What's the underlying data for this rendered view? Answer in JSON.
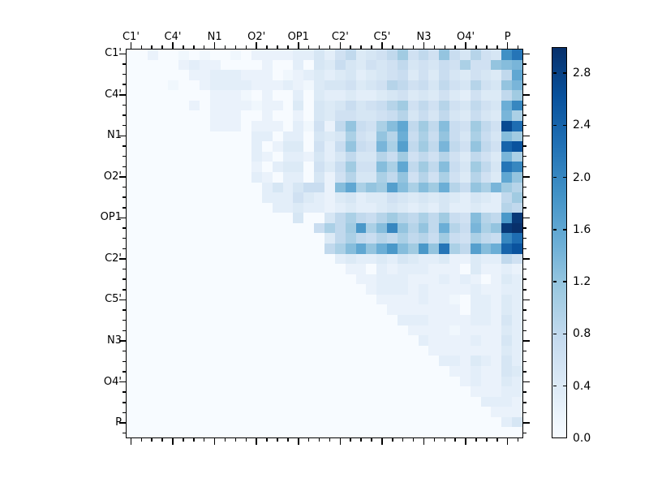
{
  "figure": {
    "background": "#ffffff",
    "kind": "matplotlib-heatmap-window"
  },
  "chart_data": {
    "type": "heatmap",
    "title": "",
    "xlabel": "",
    "ylabel": "",
    "axis_labels": [
      "C1'",
      "C4'",
      "N1",
      "O2'",
      "OP1",
      "C2'",
      "C5'",
      "N3",
      "O4'",
      "P"
    ],
    "label_cell_positions": [
      0,
      4,
      8,
      12,
      16,
      20,
      24,
      28,
      32,
      36
    ],
    "grid_size": 38,
    "orientation": "upper-triangular",
    "vmin": 0.0,
    "vmax": 3.0,
    "colormap_name": "Blues",
    "colormap": {
      "pos": [
        0.0,
        0.125,
        0.25,
        0.375,
        0.5,
        0.625,
        0.75,
        0.875,
        1.0
      ],
      "hex": [
        "#f7fbff",
        "#deebf7",
        "#c6dbef",
        "#9ecae1",
        "#6baed6",
        "#4292c6",
        "#2171b5",
        "#08519c",
        "#08306b"
      ]
    },
    "colorbar_tick_labels": [
      "0.0",
      "0.4",
      "0.8",
      "1.2",
      "1.6",
      "2.0",
      "2.4",
      "2.8"
    ],
    "colorbar_tick_values": [
      0.0,
      0.4,
      0.8,
      1.2,
      1.6,
      2.0,
      2.4,
      2.8
    ],
    "legend": "none",
    "grid_lines": "off",
    "matrix": [
      [
        0,
        0,
        0.2,
        0,
        0,
        0.1,
        0,
        0.1,
        0,
        0,
        0.1,
        0,
        0.2,
        0.2,
        0.2,
        0.2,
        0.3,
        0.3,
        0.5,
        0.3,
        0.6,
        0.8,
        0.4,
        0.5,
        0.6,
        0.8,
        1.1,
        0.6,
        0.8,
        0.6,
        1.2,
        0.7,
        0.5,
        0.9,
        0.6,
        0.5,
        1.9,
        2.2
      ],
      [
        0,
        0,
        0,
        0,
        0,
        0.2,
        0.3,
        0.2,
        0.2,
        0,
        0,
        0,
        0,
        0.2,
        0,
        0,
        0.3,
        0,
        0.5,
        0.4,
        0.7,
        0.5,
        0.4,
        0.6,
        0.5,
        0.6,
        0.8,
        0.5,
        0.6,
        0.5,
        0.7,
        0.6,
        1.0,
        0.6,
        0.6,
        1.2,
        1.3,
        1.4
      ],
      [
        0,
        0,
        0,
        0,
        0,
        0,
        0.2,
        0.2,
        0.3,
        0.3,
        0.3,
        0.2,
        0.2,
        0.2,
        0,
        0.1,
        0.2,
        0.3,
        0.4,
        0.3,
        0.4,
        0.5,
        0.3,
        0.4,
        0.5,
        0.6,
        0.7,
        0.4,
        0.6,
        0.4,
        0.7,
        0.5,
        0.4,
        0.6,
        0.5,
        0.4,
        0.8,
        1.6
      ],
      [
        0,
        0,
        0,
        0,
        0.1,
        0,
        0,
        0.2,
        0.3,
        0.3,
        0.3,
        0.3,
        0.2,
        0.2,
        0.2,
        0.3,
        0.2,
        0.1,
        0.4,
        0.5,
        0.5,
        0.6,
        0.4,
        0.5,
        0.6,
        0.9,
        0.8,
        0.6,
        0.7,
        0.5,
        0.8,
        0.6,
        0.5,
        0.9,
        0.6,
        0.5,
        1.2,
        1.4
      ],
      [
        0,
        0,
        0,
        0,
        0,
        0,
        0,
        0,
        0.2,
        0.2,
        0.2,
        0.1,
        0,
        0.2,
        0,
        0,
        0.3,
        0,
        0.4,
        0.3,
        0.3,
        0.4,
        0.3,
        0.3,
        0.4,
        0.5,
        0.6,
        0.4,
        0.5,
        0.4,
        0.6,
        0.4,
        0.3,
        0.6,
        0.4,
        0.4,
        0.8,
        1.1
      ],
      [
        0,
        0,
        0,
        0,
        0,
        0,
        0.2,
        0,
        0.2,
        0.2,
        0.2,
        0.2,
        0.1,
        0.2,
        0.2,
        0,
        0.4,
        0,
        0.5,
        0.4,
        0.5,
        0.7,
        0.5,
        0.6,
        0.7,
        0.9,
        1.1,
        0.6,
        0.8,
        0.6,
        0.9,
        0.6,
        0.5,
        0.8,
        0.6,
        0.5,
        1.5,
        2.0
      ],
      [
        0,
        0,
        0,
        0,
        0,
        0,
        0,
        0,
        0.2,
        0.2,
        0.2,
        0,
        0,
        0.2,
        0,
        0,
        0.2,
        0,
        0.5,
        0.4,
        0.6,
        0.6,
        0.5,
        0.5,
        0.6,
        0.7,
        0.9,
        0.5,
        0.7,
        0.5,
        0.8,
        0.5,
        0.4,
        0.7,
        0.5,
        0.4,
        1.4,
        1.0
      ],
      [
        0,
        0,
        0,
        0,
        0,
        0,
        0,
        0,
        0.2,
        0.2,
        0.2,
        0,
        0.2,
        0.2,
        0.2,
        0,
        0.3,
        0.1,
        0.6,
        0.2,
        0.8,
        1.2,
        0.7,
        0.6,
        1.0,
        1.3,
        1.6,
        0.8,
        1.1,
        0.8,
        1.3,
        0.7,
        0.6,
        1.1,
        0.8,
        0.6,
        2.7,
        2.3
      ],
      [
        0,
        0,
        0,
        0,
        0,
        0,
        0,
        0,
        0,
        0,
        0,
        0,
        0.3,
        0.3,
        0,
        0.3,
        0.3,
        0,
        0.5,
        0.4,
        0.5,
        1.0,
        0.6,
        0.5,
        1.2,
        0.9,
        1.5,
        0.7,
        1.0,
        0.7,
        1.2,
        0.7,
        0.5,
        1.0,
        0.7,
        0.5,
        1.3,
        1.1
      ],
      [
        0,
        0,
        0,
        0,
        0,
        0,
        0,
        0,
        0,
        0,
        0,
        0,
        0.3,
        0,
        0.2,
        0.4,
        0.4,
        0,
        0.6,
        0.3,
        0.7,
        1.2,
        0.7,
        0.6,
        1.4,
        1.0,
        1.7,
        0.8,
        1.1,
        0.8,
        1.4,
        0.8,
        0.6,
        1.2,
        0.8,
        0.6,
        2.4,
        2.6
      ],
      [
        0,
        0,
        0,
        0,
        0,
        0,
        0,
        0,
        0,
        0,
        0,
        0,
        0.3,
        0.2,
        0,
        0.3,
        0.3,
        0.2,
        0.5,
        0.3,
        0.5,
        0.8,
        0.5,
        0.5,
        0.9,
        0.7,
        1.1,
        0.6,
        0.8,
        0.6,
        0.9,
        0.6,
        0.4,
        0.8,
        0.6,
        0.4,
        1.4,
        1.0
      ],
      [
        0,
        0,
        0,
        0,
        0,
        0,
        0,
        0,
        0,
        0,
        0,
        0,
        0.2,
        0,
        0.3,
        0.4,
        0.4,
        0,
        0.6,
        0.4,
        0.7,
        1.1,
        0.6,
        0.6,
        1.3,
        1.0,
        1.6,
        0.8,
        1.1,
        0.8,
        1.3,
        0.7,
        0.5,
        1.1,
        0.8,
        0.5,
        2.2,
        2.0
      ],
      [
        0,
        0,
        0,
        0,
        0,
        0,
        0,
        0,
        0,
        0,
        0,
        0,
        0.3,
        0.2,
        0,
        0.3,
        0.3,
        0,
        0.5,
        0.2,
        0.6,
        0.9,
        0.5,
        0.5,
        1.0,
        0.8,
        1.2,
        0.6,
        0.9,
        0.6,
        1.0,
        0.6,
        0.4,
        0.9,
        0.6,
        0.4,
        1.6,
        1.2
      ],
      [
        0,
        0,
        0,
        0,
        0,
        0,
        0,
        0,
        0,
        0,
        0,
        0,
        0,
        0.3,
        0.5,
        0.3,
        0.5,
        0.7,
        0.7,
        0.2,
        1.3,
        1.6,
        1.0,
        1.2,
        1.1,
        1.7,
        1.3,
        1.0,
        1.3,
        1.1,
        1.5,
        0.9,
        0.7,
        1.2,
        1.0,
        1.4,
        1.1,
        0.9
      ],
      [
        0,
        0,
        0,
        0,
        0,
        0,
        0,
        0,
        0,
        0,
        0,
        0,
        0,
        0.3,
        0.3,
        0.3,
        0.6,
        0.4,
        0.3,
        0.2,
        0.4,
        0.5,
        0.3,
        0.4,
        0.4,
        0.6,
        0.5,
        0.4,
        0.5,
        0.4,
        0.5,
        0.4,
        0.3,
        0.5,
        0.4,
        0.3,
        0.8,
        1.1
      ],
      [
        0,
        0,
        0,
        0,
        0,
        0,
        0,
        0,
        0,
        0,
        0,
        0,
        0,
        0,
        0.3,
        0.3,
        0.4,
        0.3,
        0.3,
        0.2,
        0.3,
        0.4,
        0.3,
        0.3,
        0.4,
        0.5,
        0.4,
        0.3,
        0.4,
        0.3,
        0.5,
        0.3,
        0.3,
        0.4,
        0.3,
        0.3,
        0.9,
        0.8
      ],
      [
        0,
        0,
        0,
        0,
        0,
        0,
        0,
        0,
        0,
        0,
        0,
        0,
        0,
        0,
        0,
        0,
        0.5,
        0,
        0,
        0.5,
        0.8,
        1.0,
        0.8,
        0.7,
        0.9,
        1.1,
        0.9,
        0.8,
        1.0,
        0.8,
        1.1,
        0.7,
        0.6,
        1.3,
        0.9,
        0.8,
        1.8,
        2.9
      ],
      [
        0,
        0,
        0,
        0,
        0,
        0,
        0,
        0,
        0,
        0,
        0,
        0,
        0,
        0,
        0,
        0,
        0,
        0,
        0.7,
        1.0,
        0.8,
        1.1,
        1.8,
        1.0,
        1.3,
        2.0,
        1.2,
        0.9,
        1.2,
        0.8,
        1.5,
        0.9,
        0.7,
        1.4,
        1.0,
        1.2,
        2.9,
        3.0
      ],
      [
        0,
        0,
        0,
        0,
        0,
        0,
        0,
        0,
        0,
        0,
        0,
        0,
        0,
        0,
        0,
        0,
        0,
        0,
        0,
        0.4,
        0.8,
        1.0,
        0.8,
        0.7,
        0.9,
        0.8,
        1.0,
        0.8,
        0.9,
        0.7,
        1.1,
        0.7,
        0.6,
        1.0,
        0.8,
        0.7,
        2.0,
        2.3
      ],
      [
        0,
        0,
        0,
        0,
        0,
        0,
        0,
        0,
        0,
        0,
        0,
        0,
        0,
        0,
        0,
        0,
        0,
        0,
        0,
        0.8,
        1.0,
        1.3,
        1.6,
        1.2,
        1.5,
        1.8,
        1.3,
        1.1,
        1.8,
        1.2,
        2.2,
        1.0,
        0.8,
        1.7,
        1.3,
        1.5,
        2.4,
        2.6
      ],
      [
        0,
        0,
        0,
        0,
        0,
        0,
        0,
        0,
        0,
        0,
        0,
        0,
        0,
        0,
        0,
        0,
        0,
        0,
        0,
        0,
        0.3,
        0.4,
        0.3,
        0.3,
        0.4,
        0.3,
        0.5,
        0.4,
        0.3,
        0.3,
        0.4,
        0.2,
        0.2,
        0.4,
        0.3,
        0.3,
        0.8,
        0.6
      ],
      [
        0,
        0,
        0,
        0,
        0,
        0,
        0,
        0,
        0,
        0,
        0,
        0,
        0,
        0,
        0,
        0,
        0,
        0,
        0,
        0,
        0,
        0.2,
        0.2,
        0,
        0.3,
        0.2,
        0.3,
        0.3,
        0.3,
        0.2,
        0.2,
        0.2,
        0,
        0.4,
        0.2,
        0.2,
        0.3,
        0.2
      ],
      [
        0,
        0,
        0,
        0,
        0,
        0,
        0,
        0,
        0,
        0,
        0,
        0,
        0,
        0,
        0,
        0,
        0,
        0,
        0,
        0,
        0,
        0,
        0.2,
        0.2,
        0.3,
        0.3,
        0.3,
        0.2,
        0.2,
        0.2,
        0.3,
        0.2,
        0.3,
        0.2,
        0,
        0.2,
        0.4,
        0.3
      ],
      [
        0,
        0,
        0,
        0,
        0,
        0,
        0,
        0,
        0,
        0,
        0,
        0,
        0,
        0,
        0,
        0,
        0,
        0,
        0,
        0,
        0,
        0,
        0,
        0.2,
        0.3,
        0.3,
        0.3,
        0.2,
        0.3,
        0.2,
        0.2,
        0.2,
        0.2,
        0.3,
        0.2,
        0.2,
        0.3,
        0.3
      ],
      [
        0,
        0,
        0,
        0,
        0,
        0,
        0,
        0,
        0,
        0,
        0,
        0,
        0,
        0,
        0,
        0,
        0,
        0,
        0,
        0,
        0,
        0,
        0,
        0,
        0.2,
        0.2,
        0.2,
        0.2,
        0.3,
        0.2,
        0.2,
        0.1,
        0,
        0.3,
        0.3,
        0.2,
        0.4,
        0.3
      ],
      [
        0,
        0,
        0,
        0,
        0,
        0,
        0,
        0,
        0,
        0,
        0,
        0,
        0,
        0,
        0,
        0,
        0,
        0,
        0,
        0,
        0,
        0,
        0,
        0,
        0,
        0.2,
        0.2,
        0.2,
        0.2,
        0.2,
        0.2,
        0.2,
        0,
        0.3,
        0.3,
        0.2,
        0.4,
        0.3
      ],
      [
        0,
        0,
        0,
        0,
        0,
        0,
        0,
        0,
        0,
        0,
        0,
        0,
        0,
        0,
        0,
        0,
        0,
        0,
        0,
        0,
        0,
        0,
        0,
        0,
        0,
        0,
        0.3,
        0.3,
        0.3,
        0.2,
        0.2,
        0.2,
        0.2,
        0.3,
        0.3,
        0.2,
        0.5,
        0.3
      ],
      [
        0,
        0,
        0,
        0,
        0,
        0,
        0,
        0,
        0,
        0,
        0,
        0,
        0,
        0,
        0,
        0,
        0,
        0,
        0,
        0,
        0,
        0,
        0,
        0,
        0,
        0,
        0,
        0.2,
        0.2,
        0.2,
        0.2,
        0.1,
        0.2,
        0.2,
        0.2,
        0.2,
        0.4,
        0.3
      ],
      [
        0,
        0,
        0,
        0,
        0,
        0,
        0,
        0,
        0,
        0,
        0,
        0,
        0,
        0,
        0,
        0,
        0,
        0,
        0,
        0,
        0,
        0,
        0,
        0,
        0,
        0,
        0,
        0,
        0.3,
        0.2,
        0.2,
        0.2,
        0.2,
        0.3,
        0.2,
        0.2,
        0.5,
        0.3
      ],
      [
        0,
        0,
        0,
        0,
        0,
        0,
        0,
        0,
        0,
        0,
        0,
        0,
        0,
        0,
        0,
        0,
        0,
        0,
        0,
        0,
        0,
        0,
        0,
        0,
        0,
        0,
        0,
        0,
        0,
        0.2,
        0.2,
        0.2,
        0.2,
        0.2,
        0.2,
        0.2,
        0.4,
        0.3
      ],
      [
        0,
        0,
        0,
        0,
        0,
        0,
        0,
        0,
        0,
        0,
        0,
        0,
        0,
        0,
        0,
        0,
        0,
        0,
        0,
        0,
        0,
        0,
        0,
        0,
        0,
        0,
        0,
        0,
        0,
        0,
        0.3,
        0.3,
        0.2,
        0.4,
        0.3,
        0.2,
        0.5,
        0.3
      ],
      [
        0,
        0,
        0,
        0,
        0,
        0,
        0,
        0,
        0,
        0,
        0,
        0,
        0,
        0,
        0,
        0,
        0,
        0,
        0,
        0,
        0,
        0,
        0,
        0,
        0,
        0,
        0,
        0,
        0,
        0,
        0,
        0.2,
        0.2,
        0.3,
        0.2,
        0.2,
        0.5,
        0.4
      ],
      [
        0,
        0,
        0,
        0,
        0,
        0,
        0,
        0,
        0,
        0,
        0,
        0,
        0,
        0,
        0,
        0,
        0,
        0,
        0,
        0,
        0,
        0,
        0,
        0,
        0,
        0,
        0,
        0,
        0,
        0,
        0,
        0,
        0.2,
        0.3,
        0.2,
        0.2,
        0.4,
        0.3
      ],
      [
        0,
        0,
        0,
        0,
        0,
        0,
        0,
        0,
        0,
        0,
        0,
        0,
        0,
        0,
        0,
        0,
        0,
        0,
        0,
        0,
        0,
        0,
        0,
        0,
        0,
        0,
        0,
        0,
        0,
        0,
        0,
        0,
        0,
        0.2,
        0.2,
        0.2,
        0.3,
        0.3
      ],
      [
        0,
        0,
        0,
        0,
        0,
        0,
        0,
        0,
        0,
        0,
        0,
        0,
        0,
        0,
        0,
        0,
        0,
        0,
        0,
        0,
        0,
        0,
        0,
        0,
        0,
        0,
        0,
        0,
        0,
        0,
        0,
        0,
        0,
        0,
        0.3,
        0.3,
        0.3,
        0.2
      ],
      [
        0,
        0,
        0,
        0,
        0,
        0,
        0,
        0,
        0,
        0,
        0,
        0,
        0,
        0,
        0,
        0,
        0,
        0,
        0,
        0,
        0,
        0,
        0,
        0,
        0,
        0,
        0,
        0,
        0,
        0,
        0,
        0,
        0,
        0,
        0,
        0.2,
        0.2,
        0.2
      ],
      [
        0,
        0,
        0,
        0,
        0,
        0,
        0,
        0,
        0,
        0,
        0,
        0,
        0,
        0,
        0,
        0,
        0,
        0,
        0,
        0,
        0,
        0,
        0,
        0,
        0,
        0,
        0,
        0,
        0,
        0,
        0,
        0,
        0,
        0,
        0,
        0,
        0.3,
        0.5
      ],
      [
        0,
        0,
        0,
        0,
        0,
        0,
        0,
        0,
        0,
        0,
        0,
        0,
        0,
        0,
        0,
        0,
        0,
        0,
        0,
        0,
        0,
        0,
        0,
        0,
        0,
        0,
        0,
        0,
        0,
        0,
        0,
        0,
        0,
        0,
        0,
        0,
        0,
        0
      ],
      [
        0,
        0,
        0,
        0,
        0,
        0,
        0,
        0,
        0,
        0,
        0,
        0,
        0,
        0,
        0,
        0,
        0,
        0,
        0,
        0,
        0,
        0,
        0,
        0,
        0,
        0,
        0,
        0,
        0,
        0,
        0,
        0,
        0,
        0,
        0,
        0,
        0,
        0
      ]
    ]
  }
}
